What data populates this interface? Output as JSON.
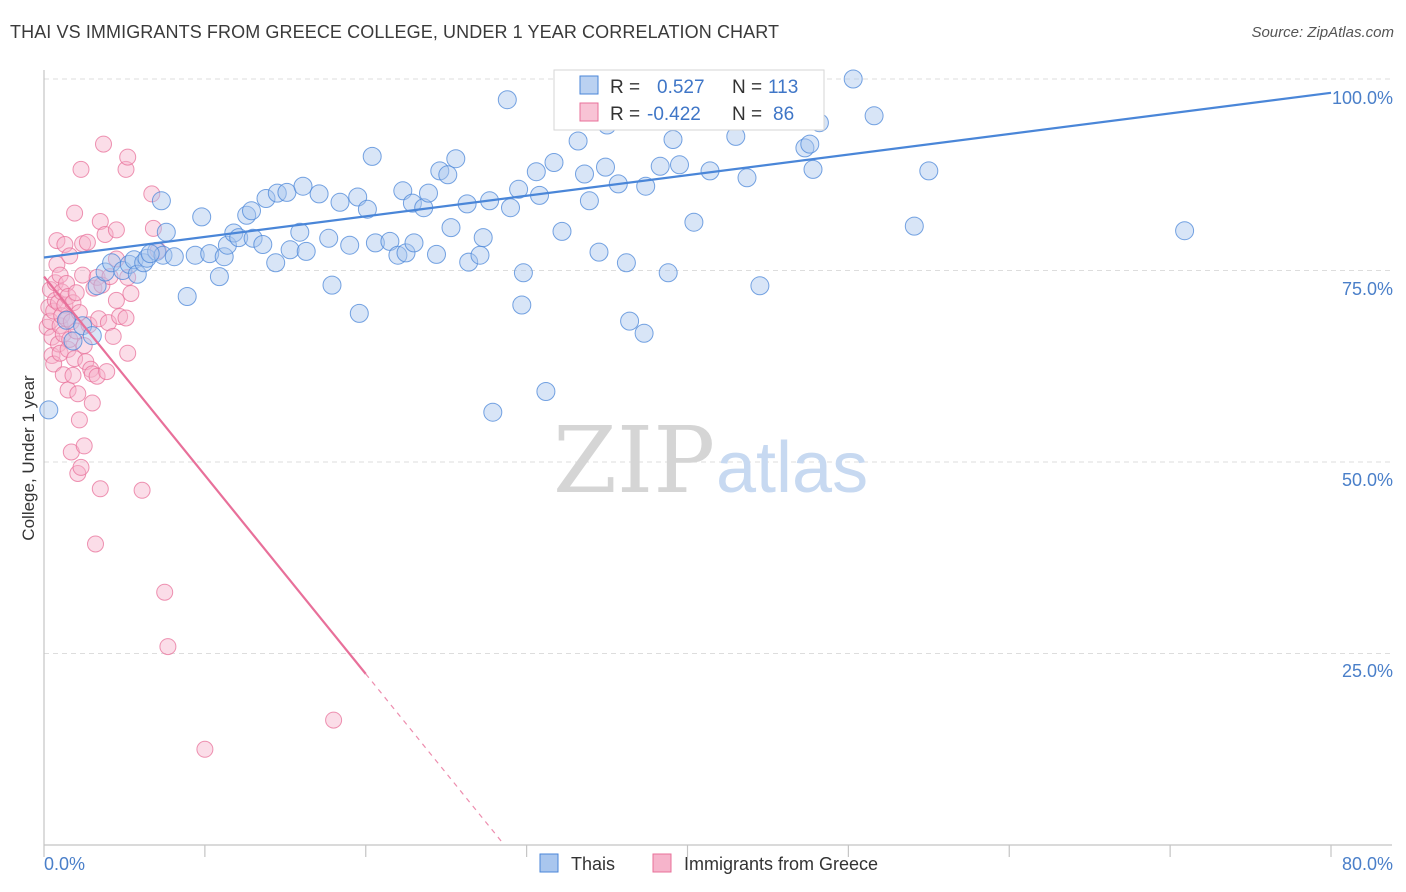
{
  "title": "THAI VS IMMIGRANTS FROM GREECE COLLEGE, UNDER 1 YEAR CORRELATION CHART",
  "source": "Source: ZipAtlas.com",
  "watermark": {
    "part1": "ZIP",
    "part2": "atlas"
  },
  "colors": {
    "blue": "#4a86d8",
    "blue_fill": "#a9c6ee",
    "pink": "#e8709a",
    "pink_fill": "#f6b4cb",
    "grid": "#dddddd",
    "tick_label": "#4a7fc9"
  },
  "stats": [
    {
      "series": "Thais",
      "r_label": "R =",
      "r_value": "0.527",
      "n_label": "N =",
      "n_value": "113"
    },
    {
      "series": "Immigrants from Greece",
      "r_label": "R =",
      "r_value": "-0.422",
      "n_label": "N =",
      "n_value": "86"
    }
  ],
  "chart_data": {
    "type": "scatter",
    "title": "THAI VS IMMIGRANTS FROM GREECE COLLEGE, UNDER 1 YEAR CORRELATION CHART",
    "xlabel": "",
    "ylabel": "College, Under 1 year",
    "xlim": [
      0,
      80
    ],
    "ylim": [
      0,
      100
    ],
    "x_tick_labels": [
      "0.0%",
      "80.0%"
    ],
    "y_ticks": [
      25,
      50,
      75,
      100
    ],
    "y_tick_labels": [
      "25.0%",
      "50.0%",
      "75.0%",
      "100.0%"
    ],
    "grid": true,
    "legend_position": "bottom",
    "series": [
      {
        "name": "Thais",
        "color": "#4a86d8",
        "r": 0.527,
        "n": 113,
        "trend": {
          "x": [
            0,
            80
          ],
          "y": [
            76.7,
            98.2
          ],
          "dashed_from": null
        },
        "points": [
          [
            0.3,
            56.8
          ],
          [
            1.4,
            68.5
          ],
          [
            1.8,
            65.8
          ],
          [
            2.4,
            67.8
          ],
          [
            3.0,
            66.5
          ],
          [
            3.3,
            73.0
          ],
          [
            3.8,
            74.8
          ],
          [
            4.2,
            76.0
          ],
          [
            4.9,
            75.0
          ],
          [
            5.3,
            75.8
          ],
          [
            5.6,
            76.4
          ],
          [
            5.8,
            74.5
          ],
          [
            6.2,
            76.0
          ],
          [
            6.4,
            76.6
          ],
          [
            7.0,
            77.5
          ],
          [
            7.4,
            77.0
          ],
          [
            6.6,
            77.2
          ],
          [
            7.6,
            80.0
          ],
          [
            8.1,
            76.8
          ],
          [
            7.3,
            84.1
          ],
          [
            8.9,
            71.6
          ],
          [
            9.4,
            77.0
          ],
          [
            9.8,
            82.0
          ],
          [
            10.3,
            77.2
          ],
          [
            10.9,
            74.2
          ],
          [
            11.2,
            76.8
          ],
          [
            11.4,
            78.3
          ],
          [
            11.8,
            79.9
          ],
          [
            12.1,
            79.3
          ],
          [
            12.6,
            82.2
          ],
          [
            12.9,
            82.8
          ],
          [
            13.0,
            79.2
          ],
          [
            13.6,
            78.4
          ],
          [
            13.8,
            84.4
          ],
          [
            14.4,
            76.0
          ],
          [
            14.5,
            85.1
          ],
          [
            15.1,
            85.2
          ],
          [
            15.3,
            77.7
          ],
          [
            15.9,
            80.0
          ],
          [
            16.3,
            77.5
          ],
          [
            16.1,
            86.0
          ],
          [
            17.1,
            85.0
          ],
          [
            17.7,
            79.2
          ],
          [
            17.9,
            73.1
          ],
          [
            18.4,
            83.9
          ],
          [
            19.0,
            78.3
          ],
          [
            19.5,
            84.6
          ],
          [
            19.6,
            69.4
          ],
          [
            20.1,
            83.0
          ],
          [
            20.6,
            78.6
          ],
          [
            20.4,
            89.9
          ],
          [
            21.5,
            78.8
          ],
          [
            22.0,
            77.0
          ],
          [
            22.3,
            85.4
          ],
          [
            22.5,
            77.3
          ],
          [
            22.9,
            83.8
          ],
          [
            23.0,
            78.6
          ],
          [
            23.6,
            83.2
          ],
          [
            23.9,
            85.1
          ],
          [
            24.4,
            77.1
          ],
          [
            24.6,
            88.0
          ],
          [
            25.1,
            87.5
          ],
          [
            25.3,
            80.6
          ],
          [
            25.6,
            89.6
          ],
          [
            26.3,
            83.7
          ],
          [
            26.4,
            76.1
          ],
          [
            27.1,
            77.0
          ],
          [
            27.3,
            79.3
          ],
          [
            27.7,
            84.1
          ],
          [
            27.9,
            56.5
          ],
          [
            28.8,
            97.3
          ],
          [
            29.0,
            83.2
          ],
          [
            29.5,
            85.6
          ],
          [
            29.7,
            70.5
          ],
          [
            29.8,
            74.7
          ],
          [
            30.6,
            87.9
          ],
          [
            30.8,
            84.8
          ],
          [
            31.2,
            59.2
          ],
          [
            31.7,
            89.1
          ],
          [
            32.2,
            80.1
          ],
          [
            33.2,
            91.9
          ],
          [
            33.6,
            87.6
          ],
          [
            33.9,
            84.1
          ],
          [
            34.5,
            77.4
          ],
          [
            34.9,
            88.5
          ],
          [
            35.0,
            94.0
          ],
          [
            35.7,
            86.3
          ],
          [
            36.2,
            76.0
          ],
          [
            36.4,
            68.4
          ],
          [
            37.3,
            66.8
          ],
          [
            37.4,
            86.0
          ],
          [
            38.3,
            88.6
          ],
          [
            38.8,
            74.7
          ],
          [
            39.1,
            92.1
          ],
          [
            39.5,
            88.8
          ],
          [
            40.4,
            81.3
          ],
          [
            41.4,
            88.0
          ],
          [
            42.3,
            95.0
          ],
          [
            43.0,
            92.5
          ],
          [
            43.7,
            87.1
          ],
          [
            44.5,
            73.0
          ],
          [
            47.3,
            91.0
          ],
          [
            47.6,
            91.5
          ],
          [
            47.8,
            88.2
          ],
          [
            48.2,
            94.3
          ],
          [
            50.3,
            100.0
          ],
          [
            51.6,
            95.2
          ],
          [
            54.1,
            80.8
          ],
          [
            55.0,
            88.0
          ],
          [
            70.9,
            80.2
          ]
        ]
      },
      {
        "name": "Immigrants from Greece",
        "color": "#e8709a",
        "r": -0.422,
        "n": 86,
        "trend": {
          "x": [
            0,
            28.5
          ],
          "y": [
            74.2,
            0.3
          ],
          "dashed_from": 20.0
        },
        "points": [
          [
            0.2,
            67.6
          ],
          [
            0.3,
            70.2
          ],
          [
            0.4,
            72.5
          ],
          [
            0.4,
            68.4
          ],
          [
            0.5,
            66.3
          ],
          [
            0.5,
            63.9
          ],
          [
            0.6,
            62.8
          ],
          [
            0.6,
            69.7
          ],
          [
            0.7,
            71.1
          ],
          [
            0.7,
            73.4
          ],
          [
            0.8,
            78.9
          ],
          [
            0.8,
            75.8
          ],
          [
            0.9,
            65.4
          ],
          [
            0.9,
            70.8
          ],
          [
            1.0,
            67.8
          ],
          [
            1.0,
            74.4
          ],
          [
            1.0,
            64.2
          ],
          [
            1.1,
            72.2
          ],
          [
            1.1,
            69.1
          ],
          [
            1.2,
            66.7
          ],
          [
            1.2,
            61.4
          ],
          [
            1.3,
            70.5
          ],
          [
            1.3,
            78.4
          ],
          [
            1.4,
            68.7
          ],
          [
            1.4,
            73.3
          ],
          [
            1.5,
            71.6
          ],
          [
            1.5,
            64.7
          ],
          [
            1.5,
            59.4
          ],
          [
            1.6,
            76.9
          ],
          [
            1.6,
            66.0
          ],
          [
            1.7,
            68.3
          ],
          [
            1.7,
            51.3
          ],
          [
            1.8,
            70.8
          ],
          [
            1.8,
            61.3
          ],
          [
            1.9,
            82.5
          ],
          [
            1.9,
            63.5
          ],
          [
            2.0,
            67.1
          ],
          [
            2.0,
            72.1
          ],
          [
            2.1,
            58.9
          ],
          [
            2.1,
            48.5
          ],
          [
            2.2,
            55.5
          ],
          [
            2.2,
            69.5
          ],
          [
            2.3,
            88.2
          ],
          [
            2.3,
            49.3
          ],
          [
            2.4,
            78.5
          ],
          [
            2.4,
            74.4
          ],
          [
            2.5,
            52.1
          ],
          [
            2.5,
            65.2
          ],
          [
            2.6,
            63.1
          ],
          [
            2.7,
            78.7
          ],
          [
            2.8,
            67.9
          ],
          [
            2.9,
            62.1
          ],
          [
            3.0,
            57.7
          ],
          [
            3.0,
            61.5
          ],
          [
            3.1,
            72.7
          ],
          [
            3.2,
            39.3
          ],
          [
            3.3,
            74.1
          ],
          [
            3.3,
            61.2
          ],
          [
            3.4,
            68.7
          ],
          [
            3.5,
            46.5
          ],
          [
            3.5,
            81.4
          ],
          [
            3.6,
            73.1
          ],
          [
            3.7,
            91.5
          ],
          [
            3.8,
            79.7
          ],
          [
            3.9,
            61.8
          ],
          [
            4.0,
            68.2
          ],
          [
            4.1,
            74.2
          ],
          [
            4.3,
            66.4
          ],
          [
            4.5,
            71.1
          ],
          [
            4.5,
            76.5
          ],
          [
            4.7,
            69.0
          ],
          [
            5.1,
            88.2
          ],
          [
            5.4,
            72.0
          ],
          [
            5.2,
            74.1
          ],
          [
            5.2,
            64.2
          ],
          [
            5.1,
            68.8
          ],
          [
            4.5,
            80.3
          ],
          [
            5.2,
            89.8
          ],
          [
            6.1,
            46.3
          ],
          [
            6.7,
            85.0
          ],
          [
            6.8,
            80.5
          ],
          [
            7.1,
            77.6
          ],
          [
            7.5,
            33.0
          ],
          [
            7.7,
            25.9
          ],
          [
            10.0,
            12.5
          ],
          [
            18.0,
            16.3
          ]
        ]
      }
    ]
  },
  "legend": [
    {
      "label": "Thais"
    },
    {
      "label": "Immigrants from Greece"
    }
  ]
}
